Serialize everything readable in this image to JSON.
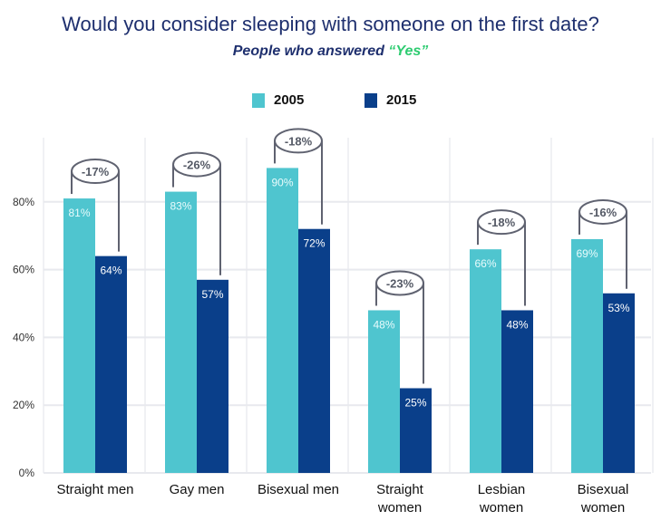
{
  "title": "Would you consider sleeping with someone on the first date?",
  "subtitle_prefix": "People who answered ",
  "subtitle_highlight": "“Yes”",
  "colors": {
    "2005": "#4fc5cf",
    "2015": "#0a3f8a",
    "highlight": "#2ecc71",
    "bracket": "#5f6270"
  },
  "chart_data": {
    "type": "bar",
    "categories": [
      [
        "Straight men"
      ],
      [
        "Gay men"
      ],
      [
        "Bisexual men"
      ],
      [
        "Straight",
        "women"
      ],
      [
        "Lesbian",
        "women"
      ],
      [
        "Bisexual",
        "women"
      ]
    ],
    "series": [
      {
        "name": "2005",
        "values": [
          81,
          83,
          90,
          48,
          66,
          69
        ],
        "labels": [
          "81%",
          "83%",
          "90%",
          "48%",
          "66%",
          "69%"
        ]
      },
      {
        "name": "2015",
        "values": [
          64,
          57,
          72,
          25,
          48,
          53
        ],
        "labels": [
          "64%",
          "57%",
          "72%",
          "25%",
          "48%",
          "53%"
        ]
      }
    ],
    "changes": [
      "-17%",
      "-26%",
      "-18%",
      "-23%",
      "-18%",
      "-16%"
    ],
    "ylim": [
      0,
      100
    ],
    "yticks": [
      0,
      20,
      40,
      60,
      80
    ],
    "ytick_labels": [
      "0%",
      "20%",
      "40%",
      "60%",
      "80%"
    ],
    "grid": true,
    "legend": "top-center"
  }
}
